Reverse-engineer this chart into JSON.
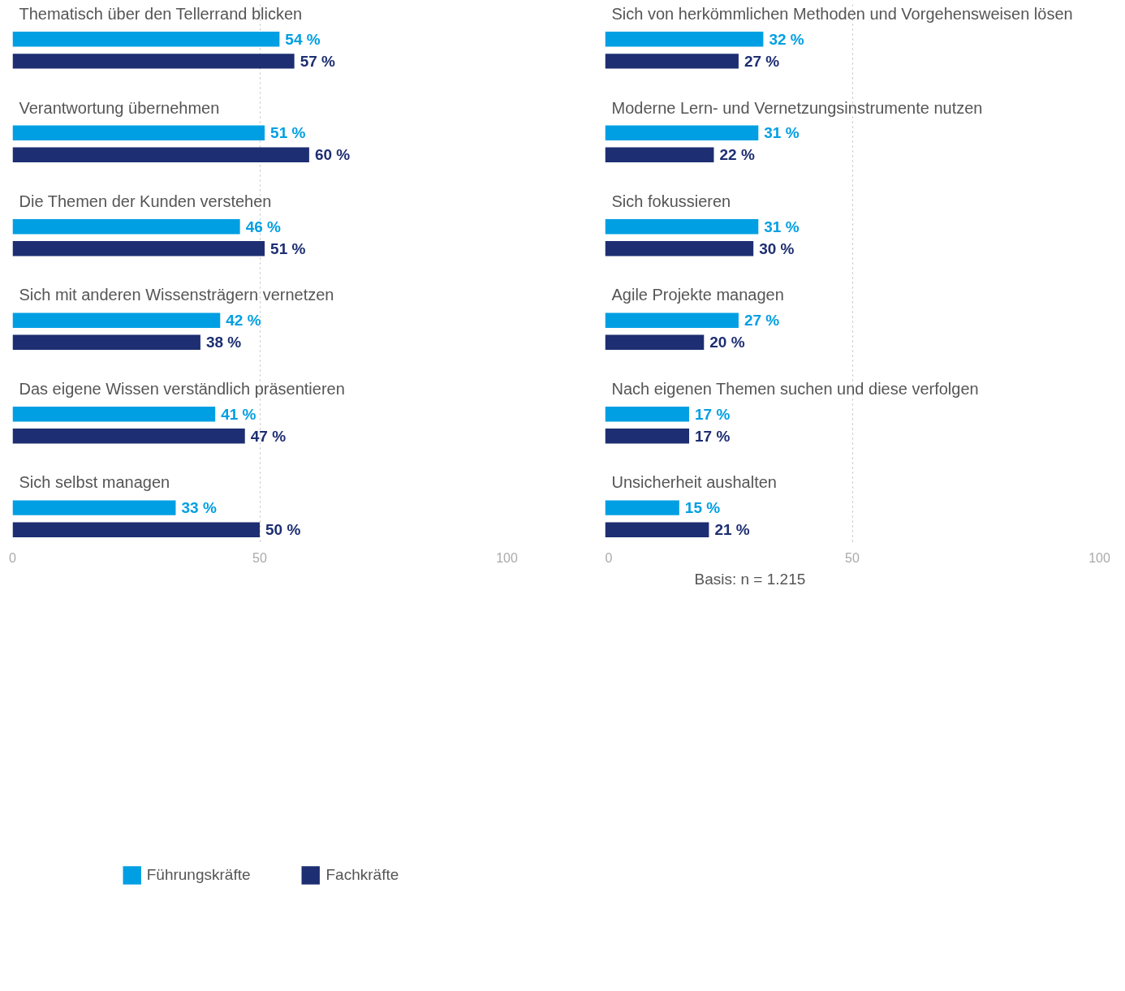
{
  "chart_data": [
    {
      "type": "bar",
      "orientation": "horizontal",
      "categories": [
        "Thematisch über den Tellerrand blicken",
        "Verantwortung übernehmen",
        "Die Themen der Kunden verstehen",
        "Sich mit anderen Wissensträgern vernetzen",
        "Das eigene Wissen verständlich präsentieren",
        "Sich selbst managen"
      ],
      "series": [
        {
          "name": "Führungskräfte",
          "color": "#009fe3",
          "values": [
            54,
            51,
            46,
            42,
            41,
            33
          ],
          "value_labels": [
            "54 %",
            "51 %",
            "46 %",
            "42 %",
            "41 %",
            "33 %"
          ]
        },
        {
          "name": "Fachkräfte",
          "color": "#1d2e72",
          "values": [
            57,
            60,
            51,
            38,
            47,
            50
          ],
          "value_labels": [
            "57 %",
            "60 %",
            "51 %",
            "38 %",
            "47 %",
            "50 %"
          ]
        }
      ],
      "xlim": [
        0,
        100
      ],
      "xticks": [
        0,
        50,
        100
      ],
      "grid": "x",
      "legend": "bottom"
    },
    {
      "type": "bar",
      "orientation": "horizontal",
      "categories": [
        "Sich von herkömmlichen Methoden und Vorgehensweisen lösen",
        "Moderne Lern- und Vernetzungsinstrumente nutzen",
        "Sich fokussieren",
        "Agile Projekte managen",
        "Nach eigenen Themen suchen und diese verfolgen",
        "Unsicherheit aushalten"
      ],
      "series": [
        {
          "color": "#009fe3",
          "values": [
            32,
            31,
            31,
            27,
            17,
            15
          ],
          "value_labels": [
            "32 %",
            "31 %",
            "31 %",
            "27 %",
            "17 %",
            "15 %"
          ]
        },
        {
          "color": "#1d2e72",
          "values": [
            27,
            22,
            30,
            20,
            17,
            21
          ],
          "value_labels": [
            "27 %",
            "22 %",
            "30 %",
            "20 %",
            "17 %",
            "21 %"
          ]
        }
      ],
      "xlim": [
        0,
        100
      ],
      "xticks": [
        0,
        50,
        100
      ],
      "grid": "x",
      "annotations": [
        "Basis: n = 1.215"
      ]
    }
  ]
}
